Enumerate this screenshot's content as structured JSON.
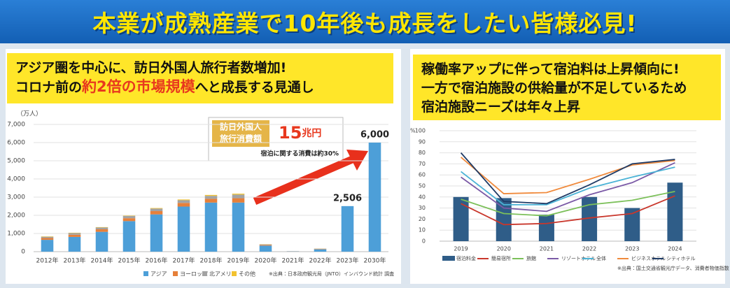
{
  "header": {
    "title": "本業が成熟産業で10年後も成長をしたい皆様必見!"
  },
  "left_panel": {
    "line1": "アジア圏を中心に、訪日外国人旅行者数増加!",
    "line2": [
      "コロナ前の",
      "約2倍の市場規模",
      "へと成長する見通し"
    ]
  },
  "callout": {
    "label": [
      "訪日外国人",
      "旅行消費額"
    ],
    "amount": [
      "15",
      "兆円"
    ],
    "note": "宿泊に関する消費は約30%"
  },
  "right_panel": {
    "lines": [
      "稼働率アップに伴って宿泊料は上昇傾向に!",
      "一方で宿泊施設の供給量が不足しているため",
      "宿泊施設ニーズは年々上昇"
    ]
  },
  "chart_data": [
    {
      "type": "bar",
      "stacked": true,
      "y_label": "（万人）",
      "legend": "bottom",
      "source": "※出典：日本政府観光局（JNTO）インバウンド統計 調査",
      "categories": [
        "2012年",
        "2013年",
        "2014年",
        "2015年",
        "2016年",
        "2017年",
        "2018年",
        "2019年",
        "2020年",
        "2021年",
        "2022年",
        "2023年",
        "2030年"
      ],
      "series": [
        {
          "name": "アジア",
          "color": "#4d9fd8",
          "values": [
            650,
            810,
            1090,
            1680,
            2050,
            2480,
            2700,
            2700,
            330,
            15,
            130,
            2506,
            6000
          ],
          "value_labels": [
            null,
            null,
            null,
            null,
            null,
            null,
            null,
            null,
            null,
            null,
            null,
            "2,506",
            "6,000"
          ]
        },
        {
          "name": "ヨーロッパ",
          "color": "#e6803a",
          "values": [
            100,
            120,
            140,
            160,
            180,
            200,
            210,
            240,
            40,
            5,
            20,
            null,
            null
          ]
        },
        {
          "name": "北アメリカ",
          "color": "#a3a3a3",
          "values": [
            70,
            90,
            100,
            120,
            140,
            150,
            160,
            200,
            30,
            4,
            15,
            null,
            null
          ]
        },
        {
          "name": "その他",
          "color": "#f2c230",
          "values": [
            20,
            20,
            20,
            20,
            30,
            40,
            50,
            50,
            10,
            1,
            5,
            null,
            null
          ]
        }
      ],
      "ylim": [
        0,
        7000
      ],
      "yticks": [
        0,
        {
          "value": 1000,
          "label": "1,000"
        },
        {
          "value": 2000,
          "label": "2,000"
        },
        {
          "value": 3000,
          "label": "3,000"
        },
        {
          "value": 4000,
          "label": "4,000"
        },
        {
          "value": 5000,
          "label": "5,000"
        },
        {
          "value": 6000,
          "label": "6,000"
        },
        {
          "value": 7000,
          "label": "7,000"
        }
      ],
      "grid": true
    },
    {
      "type": "combo",
      "y_label": "%",
      "legend": "bottom",
      "source": "※出典：国土交通省観光庁データ、消費者物価指数（CPI）",
      "categories": [
        "2019",
        "2020",
        "2021",
        "2022",
        "2023",
        "2024"
      ],
      "series": [
        {
          "name": "宿泊料金",
          "type": "bar",
          "color": "#2f5d88",
          "values": [
            40,
            39,
            24,
            40,
            30,
            53
          ]
        },
        {
          "name": "簡易宿所",
          "type": "line",
          "color": "#c9372c",
          "values": [
            34,
            15,
            16,
            21,
            25,
            41
          ]
        },
        {
          "name": "旅館",
          "type": "line",
          "color": "#7cc05a",
          "values": [
            38,
            25,
            23,
            33,
            37,
            45
          ]
        },
        {
          "name": "リゾートホテル",
          "type": "line",
          "color": "#7b5aa6",
          "values": [
            58,
            30,
            27,
            42,
            53,
            71
          ]
        },
        {
          "name": "全体",
          "type": "line",
          "color": "#4bb3d6",
          "values": [
            63,
            33,
            33,
            48,
            58,
            67
          ]
        },
        {
          "name": "ビジネスホテル",
          "type": "line",
          "color": "#f08a3c",
          "values": [
            76,
            43,
            44,
            56,
            69,
            73
          ]
        },
        {
          "name": "シティホテル",
          "type": "line",
          "color": "#1f3b66",
          "values": [
            80,
            36,
            34,
            51,
            70,
            74
          ]
        }
      ],
      "ylim": [
        0,
        100
      ],
      "yticks": [
        0,
        10,
        20,
        30,
        40,
        50,
        60,
        70,
        80,
        90,
        100
      ],
      "grid": true
    }
  ]
}
